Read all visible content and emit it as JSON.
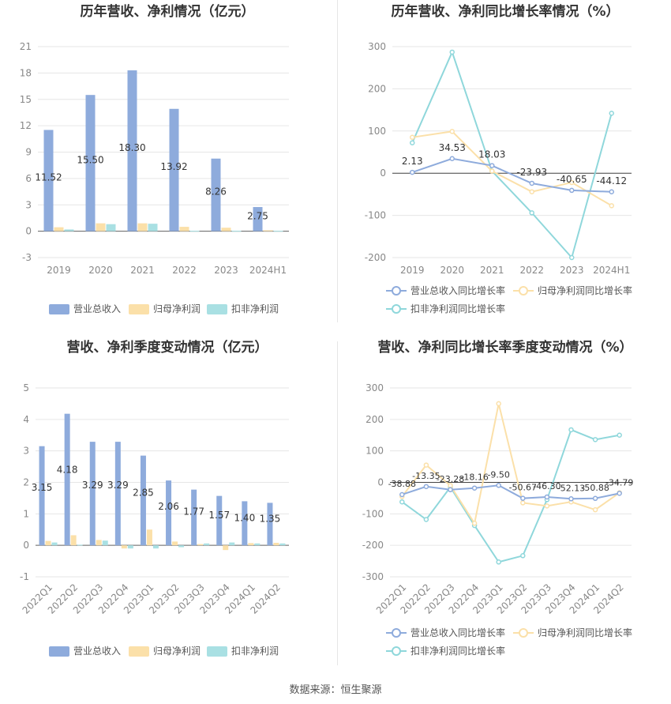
{
  "colors": {
    "revenue_bar": "#8eabdc",
    "netprofit_bar": "#fbe0a9",
    "deducted_bar": "#a9e0e3",
    "revenue_line": "#8eabdc",
    "netprofit_line": "#fbe0a9",
    "deducted_line": "#8fd7db",
    "grid": "#e6e6e6",
    "axis_text": "#888888",
    "title_text": "#333333"
  },
  "source_text": "数据来源：恒生聚源",
  "chart_data": [
    {
      "id": "annual_values",
      "type": "bar",
      "title": "历年营收、净利情况（亿元）",
      "categories": [
        "2019",
        "2020",
        "2021",
        "2022",
        "2023",
        "2024H1"
      ],
      "ylim": [
        -3,
        21
      ],
      "yticks": [
        -3,
        0,
        3,
        6,
        9,
        12,
        15,
        18,
        21
      ],
      "grid": true,
      "legend_position": "bottom",
      "series": [
        {
          "name": "营业总收入",
          "values": [
            11.52,
            15.5,
            18.3,
            13.92,
            8.26,
            2.75
          ],
          "labels": [
            "11.52",
            "15.50",
            "18.30",
            "13.92",
            "8.26",
            "2.75"
          ]
        },
        {
          "name": "归母净利润",
          "values": [
            0.45,
            0.9,
            0.9,
            0.5,
            0.4,
            0.1
          ]
        },
        {
          "name": "扣非净利润",
          "values": [
            0.2,
            0.8,
            0.85,
            0.05,
            0.05,
            0.05
          ]
        }
      ]
    },
    {
      "id": "annual_growth",
      "type": "line",
      "title": "历年营收、净利同比增长率情况（%）",
      "categories": [
        "2019",
        "2020",
        "2021",
        "2022",
        "2023",
        "2024H1"
      ],
      "ylim": [
        -200,
        300
      ],
      "yticks": [
        -200,
        -100,
        0,
        100,
        200,
        300
      ],
      "grid": true,
      "legend_position": "bottom",
      "series": [
        {
          "name": "营业总收入同比增长率",
          "values": [
            2.13,
            34.53,
            18.03,
            -23.93,
            -40.65,
            -44.12
          ],
          "labels": [
            "2.13",
            "34.53",
            "18.03",
            "-23.93",
            "-40.65",
            "-44.12"
          ]
        },
        {
          "name": "归母净利润同比增长率",
          "values": [
            85,
            99,
            5,
            -44,
            -22,
            -77
          ]
        },
        {
          "name": "扣非净利润同比增长率",
          "values": [
            72,
            287,
            5,
            -94,
            -200,
            142
          ]
        }
      ]
    },
    {
      "id": "quarterly_values",
      "type": "bar",
      "title": "营收、净利季度变动情况（亿元）",
      "categories": [
        "2022Q1",
        "2022Q2",
        "2022Q3",
        "2022Q4",
        "2023Q1",
        "2023Q2",
        "2023Q3",
        "2023Q4",
        "2024Q1",
        "2024Q2"
      ],
      "ylim": [
        -1,
        5
      ],
      "yticks": [
        -1,
        0,
        1,
        2,
        3,
        4,
        5
      ],
      "grid": true,
      "legend_position": "bottom",
      "series": [
        {
          "name": "营业总收入",
          "values": [
            3.15,
            4.18,
            3.29,
            3.29,
            2.85,
            2.06,
            1.77,
            1.57,
            1.4,
            1.35
          ],
          "labels": [
            "3.15",
            "4.18",
            "3.29",
            "3.29",
            "2.85",
            "2.06",
            "1.77",
            "1.57",
            "1.40",
            "1.35"
          ]
        },
        {
          "name": "归母净利润",
          "values": [
            0.14,
            0.32,
            0.17,
            -0.1,
            0.5,
            0.12,
            0.04,
            -0.15,
            0.07,
            0.08
          ]
        },
        {
          "name": "扣非净利润",
          "values": [
            0.09,
            0.02,
            0.15,
            -0.1,
            -0.1,
            -0.06,
            0.06,
            0.09,
            0.06,
            0.06
          ]
        }
      ]
    },
    {
      "id": "quarterly_growth",
      "type": "line",
      "title": "营收、净利同比增长率季度变动情况（%）",
      "categories": [
        "2022Q1",
        "2022Q2",
        "2022Q3",
        "2022Q4",
        "2023Q1",
        "2023Q2",
        "2023Q3",
        "2023Q4",
        "2024Q1",
        "2024Q2"
      ],
      "ylim": [
        -300,
        300
      ],
      "yticks": [
        -300,
        -200,
        -100,
        0,
        100,
        200,
        300
      ],
      "grid": true,
      "legend_position": "bottom",
      "series": [
        {
          "name": "营业总收入同比增长率",
          "values": [
            -38.88,
            -13.35,
            -23.28,
            -18.16,
            -9.5,
            -50.67,
            -46.3,
            -52.13,
            -50.88,
            -34.79
          ],
          "labels": [
            "-38.88",
            "-13.35",
            "-23.28",
            "-18.16",
            "-9.50",
            "-50.67",
            "-46.30",
            "-52.13",
            "-50.88",
            "-34.79"
          ]
        },
        {
          "name": "归母净利润同比增长率",
          "values": [
            -45,
            55,
            -10,
            -130,
            250,
            -65,
            -75,
            -62,
            -87,
            -33
          ]
        },
        {
          "name": "扣非净利润同比增长率",
          "values": [
            -62,
            -118,
            -15,
            -137,
            -253,
            -233,
            -55,
            167,
            136,
            150
          ]
        }
      ]
    }
  ]
}
